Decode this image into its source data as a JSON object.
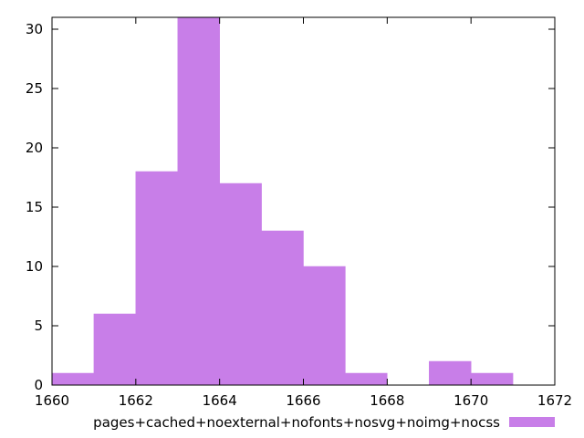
{
  "chart_data": {
    "type": "bar",
    "title": "",
    "xlabel": "",
    "ylabel": "",
    "xlim": [
      1660,
      1672
    ],
    "ylim": [
      0,
      31
    ],
    "x_ticks": [
      "1660",
      "1662",
      "1664",
      "1666",
      "1668",
      "1670",
      "1672"
    ],
    "y_ticks": [
      "0",
      "5",
      "10",
      "15",
      "20",
      "25",
      "30"
    ],
    "grid": false,
    "legend_position": "bottom",
    "bar_color": "#c87ee8",
    "series": [
      {
        "name": "pages+cached+noexternal+nofonts+nosvg+noimg+nocss",
        "bins": [
          {
            "start": 1660,
            "end": 1661,
            "count": 1
          },
          {
            "start": 1661,
            "end": 1662,
            "count": 6
          },
          {
            "start": 1662,
            "end": 1663,
            "count": 18
          },
          {
            "start": 1663,
            "end": 1664,
            "count": 31
          },
          {
            "start": 1664,
            "end": 1665,
            "count": 17
          },
          {
            "start": 1665,
            "end": 1666,
            "count": 13
          },
          {
            "start": 1666,
            "end": 1667,
            "count": 10
          },
          {
            "start": 1667,
            "end": 1668,
            "count": 1
          },
          {
            "start": 1669,
            "end": 1670,
            "count": 2
          },
          {
            "start": 1670,
            "end": 1671,
            "count": 1
          }
        ]
      }
    ]
  }
}
